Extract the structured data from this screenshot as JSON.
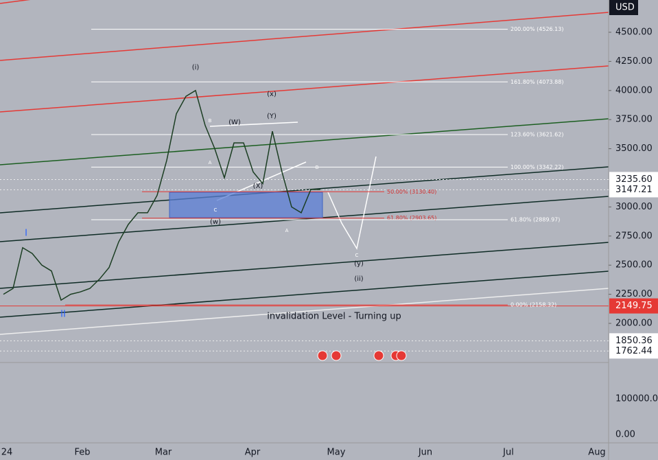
{
  "currency": "USD",
  "price_axis": {
    "ticks": [
      {
        "value": 4500,
        "label": "4500.00"
      },
      {
        "value": 4250,
        "label": "4250.00"
      },
      {
        "value": 4000,
        "label": "4000.00"
      },
      {
        "value": 3750,
        "label": "3750.00"
      },
      {
        "value": 3500,
        "label": "3500.00"
      },
      {
        "value": 3000,
        "label": "3000.00"
      },
      {
        "value": 2750,
        "label": "2750.00"
      },
      {
        "value": 2500,
        "label": "2500.00"
      },
      {
        "value": 2250,
        "label": "2250.00"
      },
      {
        "value": 2000,
        "label": "2000.00"
      }
    ],
    "badges": [
      {
        "value": 3235.6,
        "label": "3235.60"
      },
      {
        "value": 3147.21,
        "label": "3147.21"
      },
      {
        "value": 2149.75,
        "label": "2149.75"
      },
      {
        "value": 1850.36,
        "label": "1850.36"
      },
      {
        "value": 1762.44,
        "label": "1762.44"
      }
    ]
  },
  "volume_axis": [
    "100000.00",
    "0.00"
  ],
  "time_axis": [
    "24",
    "Feb",
    "Mar",
    "Apr",
    "May",
    "Jun",
    "Jul",
    "Aug"
  ],
  "fib_levels": [
    {
      "value": 4526.13,
      "label": "200.00% (4526.13)"
    },
    {
      "value": 4073.88,
      "label": "161.80% (4073.88)"
    },
    {
      "value": 3621.62,
      "label": "123.60% (3621.62)"
    },
    {
      "value": 3342.22,
      "label": "100.00% (3342.22)"
    },
    {
      "value": 3130.4,
      "label": "50.00% (3130.40)"
    },
    {
      "value": 2903.65,
      "label": "61.80% (2903.65)"
    },
    {
      "value": 2889.97,
      "label": "61.80% (2889.97)"
    },
    {
      "value": 2158.32,
      "label": "0.00% (2158.32)"
    }
  ],
  "wave_labels": [
    "(i)",
    "(x)",
    "(W)",
    "(Y)",
    "B",
    "A",
    "C",
    "(X)",
    "B",
    "A",
    "(w)",
    "C",
    "(y)",
    "(ii)",
    "I",
    "II"
  ],
  "annotation": "invalidation Level - Turning up",
  "closes": [
    2250,
    2300,
    2650,
    2600,
    2500,
    2450,
    2200,
    2250,
    2270,
    2300,
    2380,
    2480,
    2700,
    2850,
    2950,
    2950,
    3100,
    3400,
    3800,
    3950,
    4000,
    3700,
    3500,
    3250,
    3550,
    3550,
    3300,
    3200,
    3650,
    3300,
    3000,
    2950,
    3150,
    3150
  ]
}
